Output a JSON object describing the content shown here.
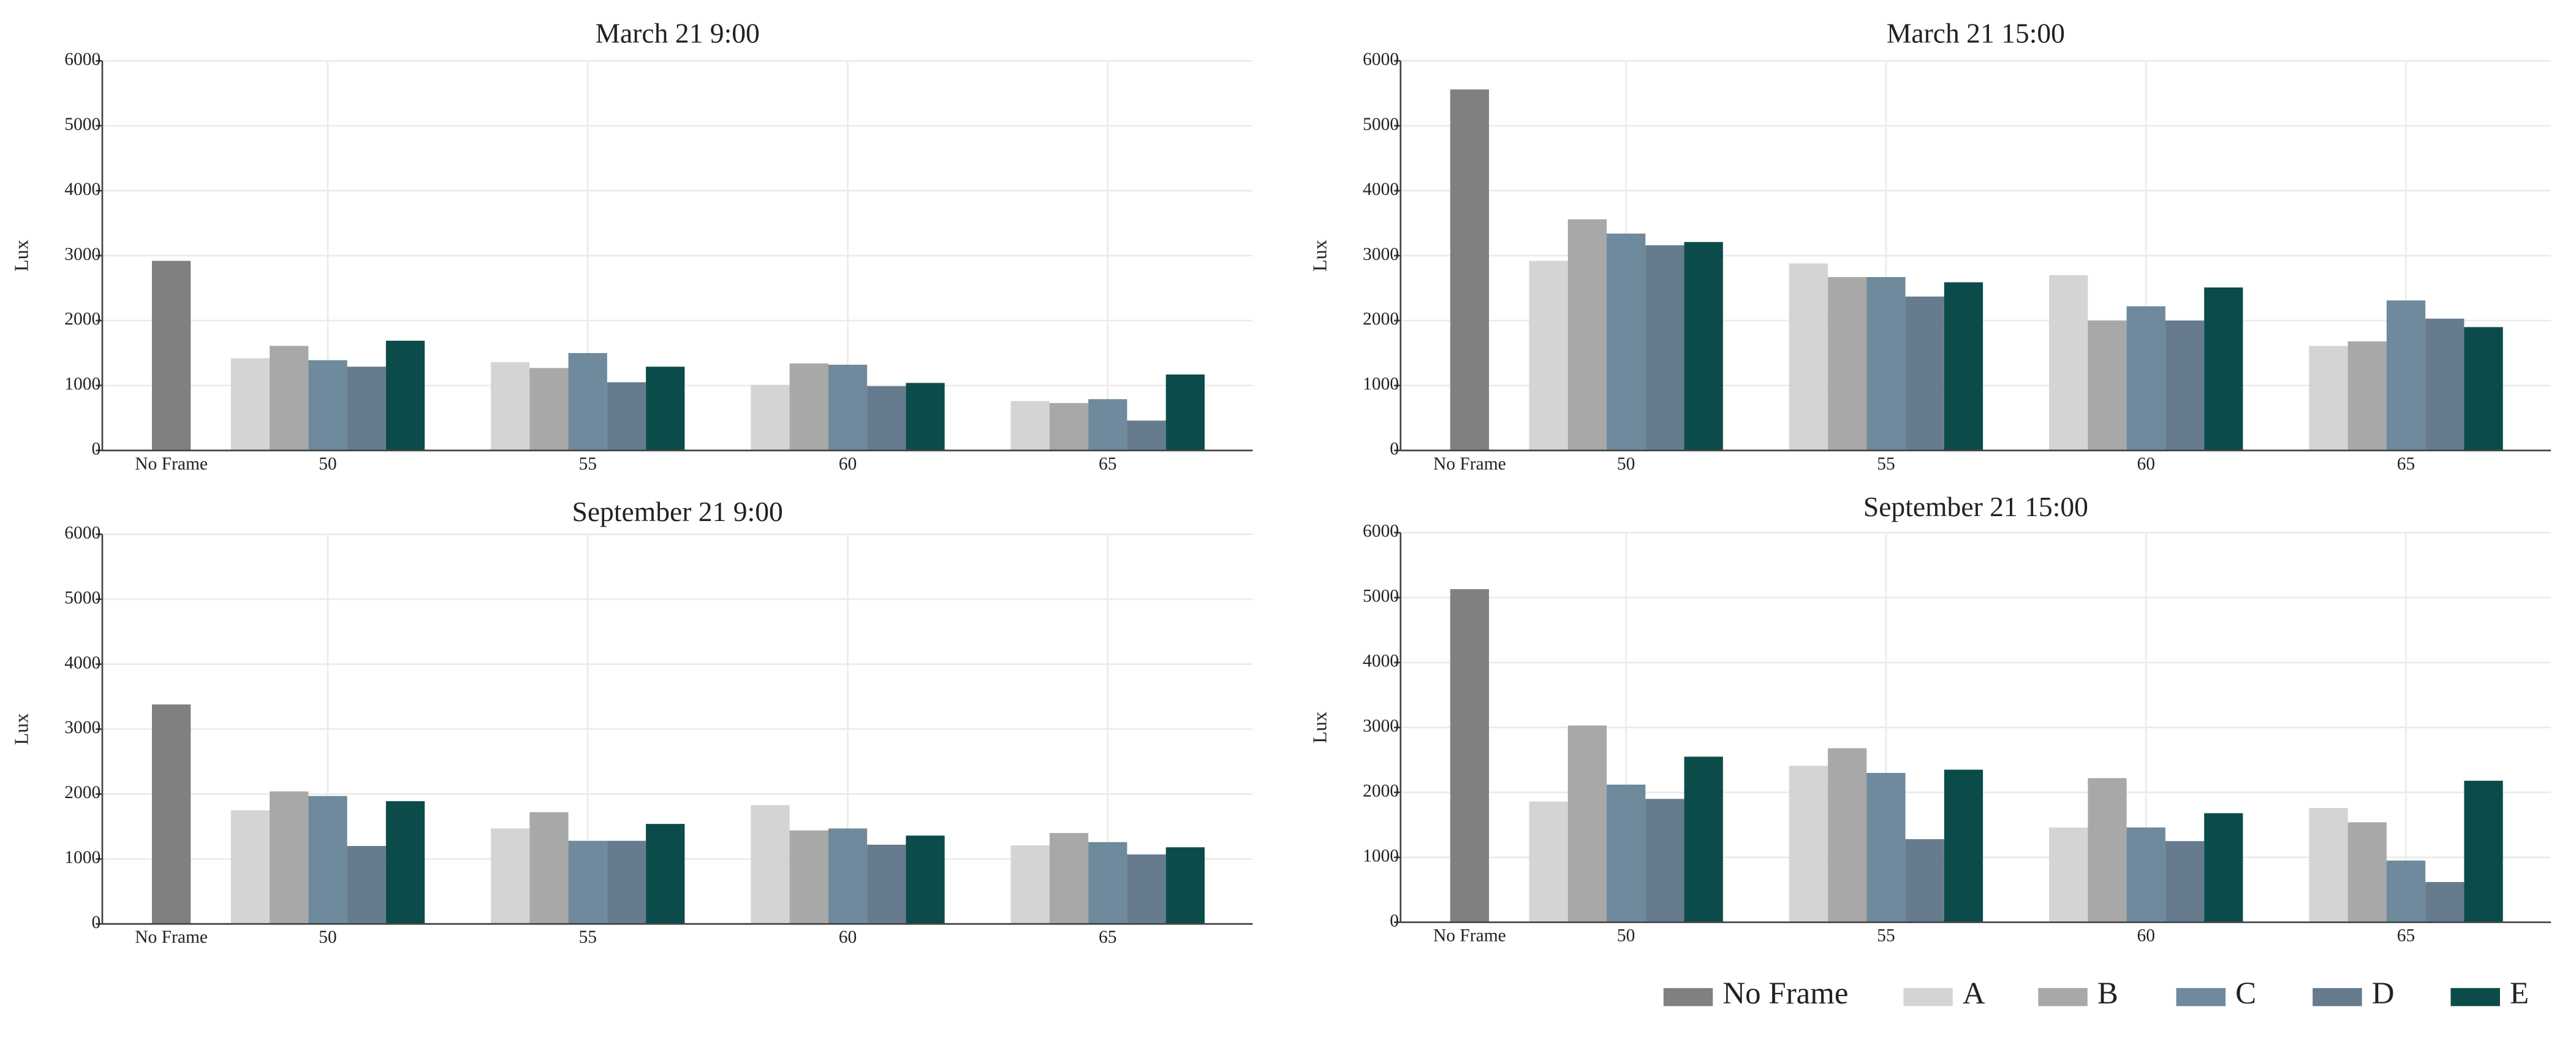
{
  "chart_data": [
    {
      "type": "bar",
      "title": "March 21 9:00",
      "ylabel": "Lux",
      "categories": [
        "No Frame",
        "50",
        "55",
        "60",
        "65"
      ],
      "ylim": [
        0,
        6000
      ],
      "yticks": [
        0,
        1000,
        2000,
        3000,
        4000,
        5000,
        6000
      ],
      "grid": true,
      "series": [
        {
          "name": "No Frame",
          "color": "#808080",
          "values": [
            2920,
            null,
            null,
            null,
            null
          ]
        },
        {
          "name": "A",
          "color": "#d4d4d4",
          "values": [
            null,
            1420,
            1360,
            1010,
            760
          ]
        },
        {
          "name": "B",
          "color": "#a8a8a8",
          "values": [
            null,
            1610,
            1270,
            1340,
            730
          ]
        },
        {
          "name": "C",
          "color": "#6e8a9c",
          "values": [
            null,
            1390,
            1500,
            1320,
            790
          ]
        },
        {
          "name": "D",
          "color": "#667b8e",
          "values": [
            null,
            1290,
            1050,
            990,
            460
          ]
        },
        {
          "name": "E",
          "color": "#0b4c4a",
          "values": [
            null,
            1690,
            1290,
            1040,
            1170
          ]
        }
      ]
    },
    {
      "type": "bar",
      "title": "March 21 15:00",
      "ylabel": "Lux",
      "categories": [
        "No Frame",
        "50",
        "55",
        "60",
        "65"
      ],
      "ylim": [
        0,
        6000
      ],
      "yticks": [
        0,
        1000,
        2000,
        3000,
        4000,
        5000,
        6000
      ],
      "grid": true,
      "series": [
        {
          "name": "No Frame",
          "color": "#808080",
          "values": [
            5560,
            null,
            null,
            null,
            null
          ]
        },
        {
          "name": "A",
          "color": "#d4d4d4",
          "values": [
            null,
            2920,
            2880,
            2700,
            1610
          ]
        },
        {
          "name": "B",
          "color": "#a8a8a8",
          "values": [
            null,
            3560,
            2670,
            2000,
            1680
          ]
        },
        {
          "name": "C",
          "color": "#6e8a9c",
          "values": [
            null,
            3340,
            2670,
            2220,
            2310
          ]
        },
        {
          "name": "D",
          "color": "#667b8e",
          "values": [
            null,
            3160,
            2370,
            2000,
            2030
          ]
        },
        {
          "name": "E",
          "color": "#0b4c4a",
          "values": [
            null,
            3210,
            2590,
            2510,
            1900
          ]
        }
      ]
    },
    {
      "type": "bar",
      "title": "September 21 9:00",
      "ylabel": "Lux",
      "categories": [
        "No Frame",
        "50",
        "55",
        "60",
        "65"
      ],
      "ylim": [
        0,
        6000
      ],
      "yticks": [
        0,
        1000,
        2000,
        3000,
        4000,
        5000,
        6000
      ],
      "grid": true,
      "series": [
        {
          "name": "No Frame",
          "color": "#808080",
          "values": [
            3380,
            null,
            null,
            null,
            null
          ]
        },
        {
          "name": "A",
          "color": "#d4d4d4",
          "values": [
            null,
            1750,
            1470,
            1830,
            1210
          ]
        },
        {
          "name": "B",
          "color": "#a8a8a8",
          "values": [
            null,
            2040,
            1720,
            1440,
            1400
          ]
        },
        {
          "name": "C",
          "color": "#6e8a9c",
          "values": [
            null,
            1970,
            1280,
            1470,
            1260
          ]
        },
        {
          "name": "D",
          "color": "#667b8e",
          "values": [
            null,
            1200,
            1280,
            1220,
            1070
          ]
        },
        {
          "name": "E",
          "color": "#0b4c4a",
          "values": [
            null,
            1890,
            1540,
            1360,
            1180
          ]
        }
      ]
    },
    {
      "type": "bar",
      "title": "September 21 15:00",
      "ylabel": "Lux",
      "categories": [
        "No Frame",
        "50",
        "55",
        "60",
        "65"
      ],
      "ylim": [
        0,
        6000
      ],
      "yticks": [
        0,
        1000,
        2000,
        3000,
        4000,
        5000,
        6000
      ],
      "grid": true,
      "series": [
        {
          "name": "No Frame",
          "color": "#808080",
          "values": [
            5130,
            null,
            null,
            null,
            null
          ]
        },
        {
          "name": "A",
          "color": "#d4d4d4",
          "values": [
            null,
            1860,
            2410,
            1460,
            1760
          ]
        },
        {
          "name": "B",
          "color": "#a8a8a8",
          "values": [
            null,
            3030,
            2680,
            2220,
            1540
          ]
        },
        {
          "name": "C",
          "color": "#6e8a9c",
          "values": [
            null,
            2120,
            2300,
            1460,
            950
          ]
        },
        {
          "name": "D",
          "color": "#667b8e",
          "values": [
            null,
            1900,
            1280,
            1250,
            620
          ]
        },
        {
          "name": "E",
          "color": "#0b4c4a",
          "values": [
            null,
            2550,
            2350,
            1680,
            2180
          ]
        }
      ]
    }
  ]
}
